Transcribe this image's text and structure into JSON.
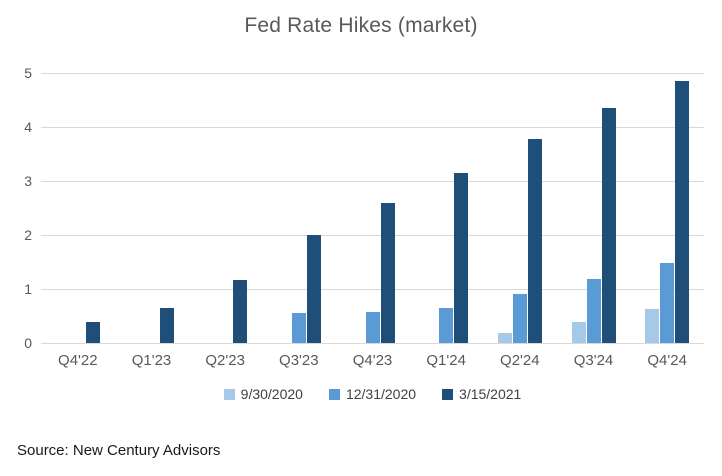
{
  "title": "Fed Rate Hikes (market)",
  "source_note": "Source: New Century Advisors",
  "colors": {
    "series_light": "#A6C9E8",
    "series_medium": "#5B9BD5",
    "series_dark": "#1F4E79",
    "gridline": "#d9d9d9",
    "axis_text": "#595959",
    "title_text": "#595959",
    "source_text": "#1a1a1a"
  },
  "chart_data": {
    "type": "bar",
    "title": "Fed Rate Hikes (market)",
    "categories": [
      "Q4'22",
      "Q1'23",
      "Q2'23",
      "Q3'23",
      "Q4'23",
      "Q1'24",
      "Q2'24",
      "Q3'24",
      "Q4'24"
    ],
    "series": [
      {
        "name": "9/30/2020",
        "color": "#A6C9E8",
        "values": [
          0,
          0,
          0,
          0,
          0,
          0,
          0.18,
          0.38,
          0.63
        ]
      },
      {
        "name": "12/31/2020",
        "color": "#5B9BD5",
        "values": [
          0,
          0,
          0,
          0.55,
          0.57,
          0.65,
          0.9,
          1.18,
          1.48
        ]
      },
      {
        "name": "3/15/2021",
        "color": "#1F4E79",
        "values": [
          0.38,
          0.65,
          1.17,
          2.0,
          2.6,
          3.15,
          3.77,
          4.35,
          4.85
        ]
      }
    ],
    "xlabel": "",
    "ylabel": "",
    "ylim": [
      0,
      5
    ],
    "yticks": [
      0,
      1,
      2,
      3,
      4,
      5
    ],
    "grid": true,
    "legend_position": "bottom"
  }
}
